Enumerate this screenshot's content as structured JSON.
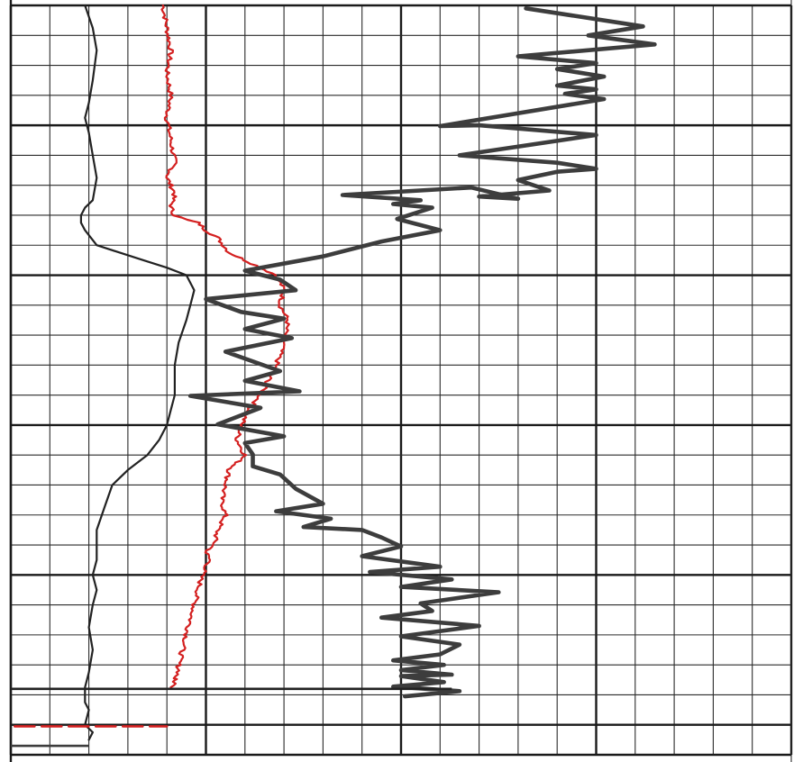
{
  "chart_data": {
    "type": "line",
    "title": "",
    "xlabel": "",
    "ylabel": "",
    "grid": true,
    "x_range": [
      0,
      20
    ],
    "y_range": [
      0,
      100
    ],
    "major_x": [
      0,
      5,
      10,
      15,
      20
    ],
    "major_y": [
      0,
      16,
      36,
      56,
      76,
      96,
      100
    ],
    "series": [
      {
        "color": "#222222",
        "style": "solid",
        "weight": "thin",
        "x": [
          1.9,
          2.1,
          2.2,
          2.1,
          2.0,
          1.9,
          2.0,
          2.1,
          2.2,
          2.1,
          1.9,
          1.8,
          1.8,
          1.9,
          2.2,
          2.8,
          3.4,
          4.0,
          4.5,
          4.7,
          4.6,
          4.5,
          4.3,
          4.2,
          4.2,
          4.1,
          4.0,
          3.8,
          3.5,
          3.0,
          2.6,
          2.4,
          2.2,
          2.2,
          2.1,
          2.2,
          2.1,
          2.0,
          2.1,
          2.0,
          1.9,
          1.9,
          2.0,
          1.9,
          2.1,
          2.0
        ],
        "y": [
          0,
          3,
          6,
          10,
          13,
          15,
          17,
          20,
          23,
          26,
          27,
          28,
          29,
          30,
          32,
          33,
          34,
          35,
          36,
          38,
          40,
          42,
          45,
          48,
          52,
          54,
          56,
          58,
          60,
          62,
          64,
          67,
          70,
          74,
          76,
          78,
          80,
          83,
          86,
          89,
          91,
          93,
          94,
          96,
          97,
          98
        ]
      },
      {
        "color": "#d42020",
        "style": "solid",
        "weight": "thin",
        "jitter": true,
        "x": [
          3.9,
          4.0,
          4.1,
          4.0,
          4.1,
          4.0,
          4.1,
          4.2,
          4.0,
          4.2,
          4.1,
          4.2,
          4.5,
          4.8,
          5.0,
          5.3,
          5.6,
          6.0,
          6.4,
          6.8,
          7.0,
          6.9,
          7.1,
          7.0,
          6.8,
          6.6,
          6.4,
          6.1,
          5.9,
          5.8,
          6.0,
          5.6,
          5.5,
          5.4,
          5.5,
          5.3,
          5.2,
          5.0,
          5.1,
          4.9,
          4.8,
          4.7,
          4.6,
          4.5,
          4.4,
          4.3,
          4.3,
          4.2,
          4.2,
          4.2,
          4.1
        ],
        "y": [
          0,
          3,
          6,
          9,
          12,
          15,
          18,
          21,
          23,
          25,
          27,
          28,
          28.6,
          29,
          30,
          31,
          33,
          34,
          35,
          36,
          38,
          40,
          42,
          45,
          48,
          50,
          52,
          54,
          56,
          58,
          60,
          62,
          64,
          66,
          68,
          70,
          72,
          73,
          74,
          76,
          78,
          80,
          82,
          84,
          86,
          88,
          89,
          89.8,
          90,
          90.5,
          91
        ]
      },
      {
        "color": "#3d3d3d",
        "style": "solid",
        "weight": "thick",
        "x": [
          13.2,
          16.2,
          14.8,
          16.5,
          13.0,
          15.0,
          14.0,
          15.2,
          14.0,
          15.0,
          14.2,
          15.2,
          11.0,
          12.0,
          15.0,
          11.5,
          14.0,
          15.0,
          14.0,
          13.0,
          13.8,
          12.0,
          13.0,
          11.8,
          8.5,
          10.5,
          9.8,
          10.8,
          9.9,
          11.0,
          9.5,
          8.0,
          6.0,
          6.9,
          7.3,
          5.0,
          5.9,
          7.0,
          6.0,
          7.2,
          5.5,
          6.9,
          6.0,
          7.4,
          4.6,
          6.4,
          5.3,
          7.0,
          6.0,
          6.2,
          6.2,
          6.9,
          7.3,
          8.0,
          6.8,
          8.2,
          7.5,
          9.0,
          9.5,
          10.0,
          9.0,
          11.0,
          9.2,
          11.3,
          10.0,
          12.5,
          10.5,
          10.8,
          9.5,
          12.0,
          10.0,
          11.5,
          11.0,
          9.8,
          11.1,
          10.0,
          11.3,
          10.0,
          11.1,
          9.8,
          11.5,
          10.1
        ],
        "y": [
          0.4,
          2.8,
          4.0,
          5.2,
          6.8,
          7.7,
          8.5,
          9.5,
          10.7,
          11.2,
          11.8,
          12.5,
          16.1,
          16.0,
          17.3,
          20.0,
          21.0,
          21.8,
          22.2,
          23.3,
          24.7,
          25.5,
          25.8,
          24.3,
          25.3,
          26.0,
          26.5,
          27.0,
          28.5,
          30.0,
          31.5,
          33.5,
          35.4,
          36.6,
          38.0,
          39.2,
          40.9,
          41.8,
          43.2,
          44.4,
          46.2,
          48.8,
          50.1,
          51.5,
          52.1,
          53.7,
          55.9,
          57.5,
          58.4,
          59.9,
          61.5,
          62.6,
          64.5,
          66.5,
          67.5,
          68.5,
          69.6,
          70.0,
          71.0,
          72.2,
          73.5,
          74.9,
          75.6,
          76.6,
          77.6,
          78.3,
          79.8,
          80.8,
          81.7,
          82.8,
          84.2,
          85.3,
          86.6,
          87.4,
          88.0,
          88.7,
          89.3,
          89.5,
          90.3,
          90.9,
          91.5,
          92.2
        ]
      },
      {
        "color": "#d42020",
        "style": "dashed",
        "weight": "medium",
        "x": [
          0.1,
          4.0
        ],
        "y": [
          96.2,
          96.2
        ]
      }
    ],
    "annotations": [
      {
        "type": "hline",
        "y": 91.2,
        "x_from": 0.0,
        "x_to": 11.3,
        "color": "#222222"
      },
      {
        "type": "hline",
        "y": 98.8,
        "x_from": 0.0,
        "x_to": 2.0,
        "color": "#3d3d3d"
      }
    ]
  }
}
